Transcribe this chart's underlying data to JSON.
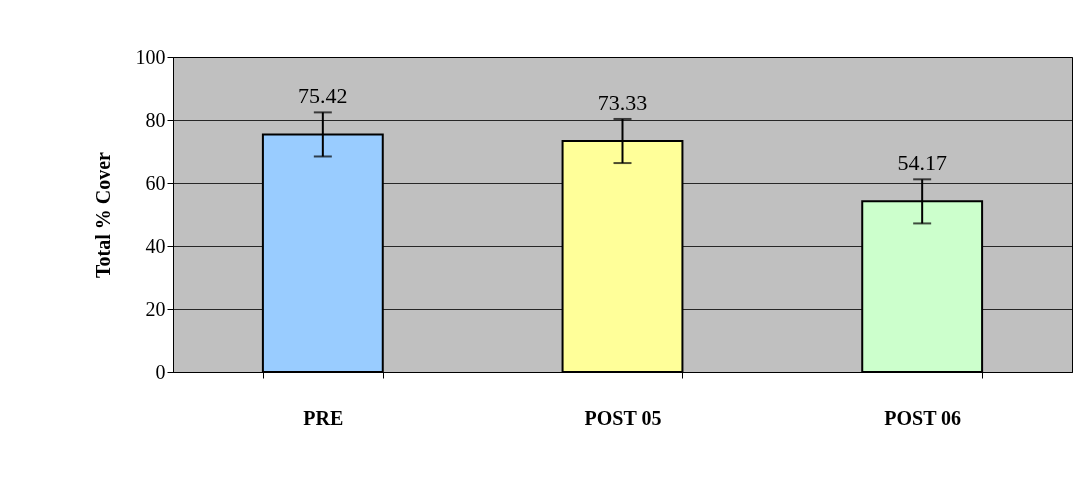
{
  "chart_data": {
    "type": "bar",
    "ylabel": "Total % Cover",
    "categories": [
      "PRE",
      "POST 05",
      "POST 06"
    ],
    "values": [
      75.42,
      73.33,
      54.17
    ],
    "colors": [
      "#99ccff",
      "#ffff99",
      "#ccffcc"
    ],
    "errors": [
      7,
      7,
      7
    ],
    "data_labels": true,
    "ylim": [
      0,
      100
    ],
    "yticks": [
      0,
      20,
      40,
      60,
      80,
      100
    ],
    "grid": "y"
  }
}
